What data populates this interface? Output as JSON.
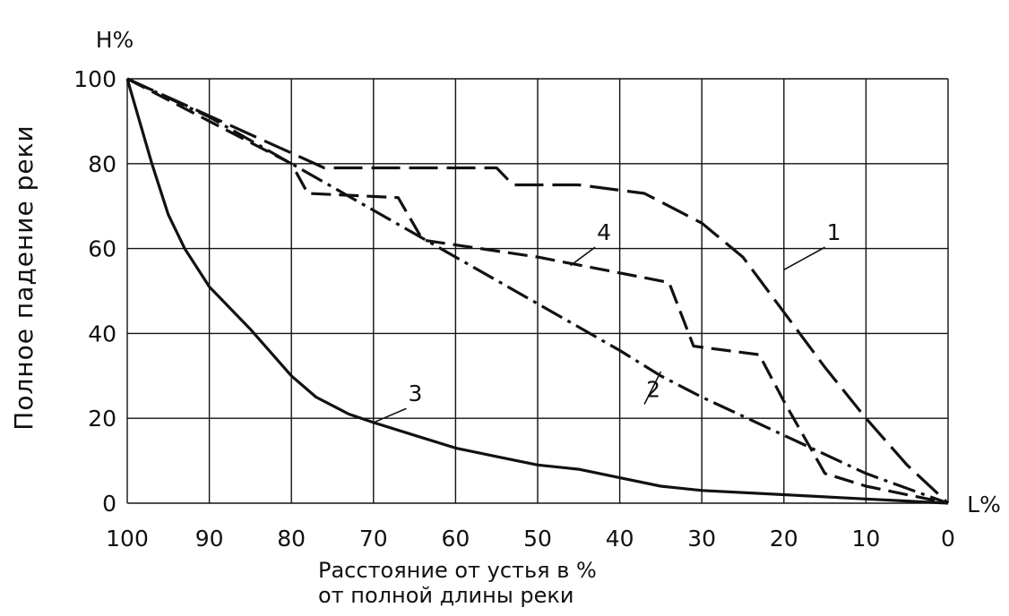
{
  "chart_data": {
    "type": "line",
    "y_unit_label": "H%",
    "x_unit_label": "L%",
    "ylabel": "Полное падение реки",
    "xlabel_lines": [
      "Расстояние от устья в %",
      "от полной длины реки"
    ],
    "x_reversed": true,
    "xlim": [
      100,
      0
    ],
    "ylim": [
      0,
      100
    ],
    "x_ticks": [
      "100",
      "90",
      "80",
      "70",
      "60",
      "50",
      "40",
      "30",
      "20",
      "10",
      "0"
    ],
    "y_ticks": [
      "0",
      "20",
      "40",
      "60",
      "80",
      "100"
    ],
    "grid": true,
    "series": [
      {
        "label": "1",
        "style": "long-dash",
        "points": [
          [
            100,
            100
          ],
          [
            76,
            79
          ],
          [
            55,
            79
          ],
          [
            53,
            75
          ],
          [
            45,
            75
          ],
          [
            37,
            73
          ],
          [
            30,
            66
          ],
          [
            25,
            58
          ],
          [
            20,
            45
          ],
          [
            15,
            32
          ],
          [
            10,
            20
          ],
          [
            5,
            9
          ],
          [
            0,
            0
          ]
        ]
      },
      {
        "label": "2",
        "style": "dash-dot",
        "points": [
          [
            100,
            100
          ],
          [
            90,
            91
          ],
          [
            80,
            80
          ],
          [
            70,
            69
          ],
          [
            60,
            58
          ],
          [
            50,
            47
          ],
          [
            40,
            36
          ],
          [
            35,
            30
          ],
          [
            30,
            25
          ],
          [
            20,
            16
          ],
          [
            10,
            7
          ],
          [
            0,
            0
          ]
        ]
      },
      {
        "label": "3",
        "style": "solid",
        "points": [
          [
            100,
            100
          ],
          [
            97,
            80
          ],
          [
            95,
            68
          ],
          [
            93,
            60
          ],
          [
            90,
            51
          ],
          [
            85,
            41
          ],
          [
            80,
            30
          ],
          [
            77,
            25
          ],
          [
            73,
            21
          ],
          [
            70,
            19
          ],
          [
            65,
            16
          ],
          [
            60,
            13
          ],
          [
            55,
            11
          ],
          [
            50,
            9
          ],
          [
            45,
            8
          ],
          [
            40,
            6
          ],
          [
            35,
            4
          ],
          [
            30,
            3
          ],
          [
            20,
            2
          ],
          [
            10,
            1
          ],
          [
            0,
            0
          ]
        ]
      },
      {
        "label": "4",
        "style": "dash",
        "points": [
          [
            100,
            100
          ],
          [
            80,
            80
          ],
          [
            78,
            73
          ],
          [
            67,
            72
          ],
          [
            64,
            62
          ],
          [
            50,
            58
          ],
          [
            34,
            52
          ],
          [
            31,
            37
          ],
          [
            23,
            35
          ],
          [
            20,
            24
          ],
          [
            15,
            7
          ],
          [
            10,
            4
          ],
          [
            0,
            0
          ]
        ]
      }
    ],
    "curve_label_positions": [
      {
        "label": "1",
        "x": 20,
        "y": 55,
        "tx": 15,
        "ty": 62
      },
      {
        "label": "2",
        "x": 35,
        "y": 31,
        "tx": 37,
        "ty": 25
      },
      {
        "label": "3",
        "x": 70,
        "y": 19,
        "tx": 66,
        "ty": 24
      },
      {
        "label": "4",
        "x": 46,
        "y": 56,
        "tx": 43,
        "ty": 62
      }
    ]
  }
}
